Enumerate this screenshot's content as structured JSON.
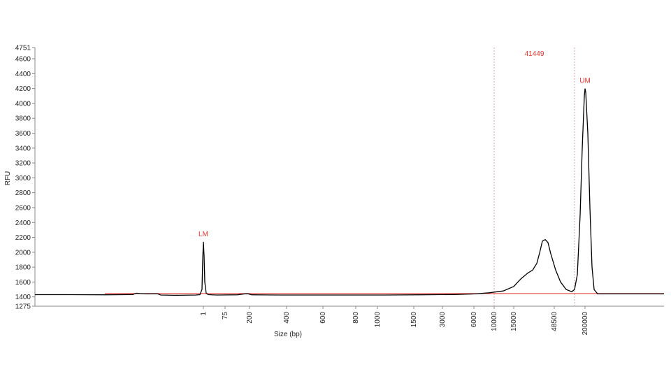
{
  "chart_data": {
    "type": "line",
    "xlabel": "Size (bp)",
    "ylabel": "RFU",
    "x": [
      0,
      50,
      100,
      140,
      145,
      150,
      160,
      175,
      180,
      200,
      230,
      236,
      239,
      240,
      241,
      242,
      243,
      245,
      248,
      260,
      290,
      300,
      305,
      310,
      350,
      400,
      450,
      500,
      550,
      600,
      630,
      650,
      670,
      685,
      695,
      705,
      712,
      718,
      722,
      726,
      730,
      734,
      738,
      745,
      752,
      760,
      768,
      772,
      776,
      780,
      783,
      786,
      787,
      788,
      791,
      794,
      797,
      800,
      805,
      820,
      850,
      880,
      900
    ],
    "series": [
      {
        "color": "#000000",
        "values": [
          1430,
          1430,
          1428,
          1432,
          1450,
          1445,
          1440,
          1442,
          1425,
          1422,
          1425,
          1430,
          1500,
          1900,
          2140,
          1950,
          1600,
          1450,
          1430,
          1425,
          1428,
          1440,
          1442,
          1428,
          1425,
          1425,
          1425,
          1425,
          1428,
          1432,
          1440,
          1455,
          1480,
          1540,
          1640,
          1720,
          1760,
          1850,
          1990,
          2150,
          2170,
          2130,
          1980,
          1760,
          1600,
          1500,
          1470,
          1500,
          1700,
          2500,
          3400,
          4100,
          4200,
          4150,
          3600,
          2600,
          1800,
          1500,
          1440,
          1440,
          1440,
          1440,
          1440
        ]
      }
    ],
    "baseline": 1445,
    "baseline_color": "#e8302a",
    "xlim": [
      0,
      900
    ],
    "xticks": [
      {
        "value": 241,
        "label": "1"
      },
      {
        "value": 272,
        "label": "75"
      },
      {
        "value": 307,
        "label": "200"
      },
      {
        "value": 360,
        "label": "400"
      },
      {
        "value": 412,
        "label": "600"
      },
      {
        "value": 459,
        "label": "800"
      },
      {
        "value": 490,
        "label": "1000"
      },
      {
        "value": 542,
        "label": "1500"
      },
      {
        "value": 583,
        "label": "3000"
      },
      {
        "value": 628,
        "label": "6000"
      },
      {
        "value": 657,
        "label": "10000"
      },
      {
        "value": 685,
        "label": "15000"
      },
      {
        "value": 743,
        "label": "48500"
      },
      {
        "value": 787,
        "label": "200000"
      }
    ],
    "ylim": [
      1275,
      4751
    ],
    "yticks": [
      1275,
      1400,
      1600,
      1800,
      2000,
      2200,
      2400,
      2600,
      2800,
      3000,
      3200,
      3400,
      3600,
      3800,
      4000,
      4200,
      4400,
      4600,
      4751
    ],
    "region": {
      "x": [
        657,
        772
      ],
      "label": "41449"
    },
    "annotations": [
      {
        "text": "LM",
        "x": 241,
        "y": 2140
      },
      {
        "text": "UM",
        "x": 787,
        "y": 4200
      }
    ]
  }
}
